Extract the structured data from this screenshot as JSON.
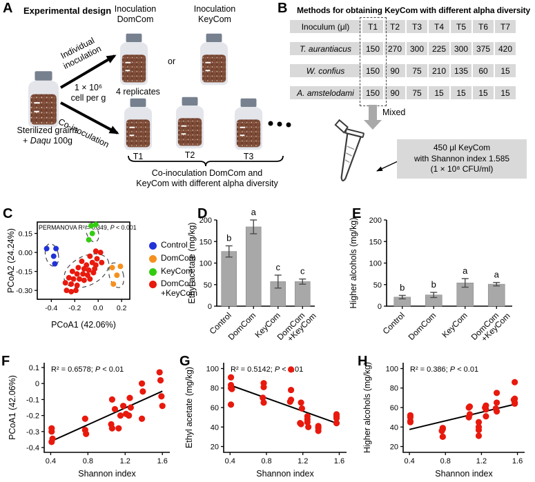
{
  "panel_a": {
    "label": "A",
    "title": "Experimental design",
    "inoculation_domcom": "Inoculation\nDomCom",
    "inoculation_keycom": "Inoculation\nKeyCom",
    "or_text": "or",
    "individual_label": "Individual\ninoculation",
    "co_label": "Co-inoculation",
    "cell_density": "1 × 10⁶\ncell per g",
    "replicates": "4 replicates",
    "sterilized_line1": "Sterilized grains",
    "sterilized_prefix": "+ ",
    "sterilized_italic": "Daqu",
    "sterilized_suffix": " 100g",
    "t1": "T1",
    "t2": "T2",
    "t3": "T3",
    "brace_caption": "Co-inoculation DomCom and\nKeyCom with different alpha diversity"
  },
  "panel_b": {
    "label": "B",
    "title": "Methods for obtaining KeyCom with different alpha diversity",
    "table": {
      "header": [
        "Inoculum (μl)",
        "T1",
        "T2",
        "T3",
        "T4",
        "T5",
        "T6",
        "T7"
      ],
      "rows": [
        {
          "species": "T. aurantiacus",
          "values": [
            "150",
            "270",
            "300",
            "225",
            "300",
            "375",
            "420"
          ]
        },
        {
          "species": "W. confius",
          "values": [
            "150",
            "90",
            "75",
            "210",
            "135",
            "60",
            "15"
          ]
        },
        {
          "species": "A. amstelodami",
          "values": [
            "150",
            "90",
            "75",
            "15",
            "15",
            "15",
            "15"
          ]
        }
      ]
    },
    "mixed_label": "Mixed",
    "callout": "450 μl KeyCom\nwith Shannon index 1.585\n(1 × 10⁸ CFU/ml)"
  },
  "panel_labels": {
    "c": "C",
    "d": "D",
    "e": "E",
    "f": "F",
    "g": "G",
    "h": "H"
  },
  "colors": {
    "control_blue": "#2132d8",
    "domcom_orange": "#f5901e",
    "keycom_green": "#33cc11",
    "point_red": "#e8190d",
    "bar_gray": "#a8a8a8",
    "cell_gray": "#d9d9d9",
    "arrow_gray": "#a9a9a9",
    "grain_brown": "#7c4a36"
  },
  "chart_data": [
    {
      "id": "C",
      "type": "scatter",
      "annotation": {
        "pre": "PERMANOVA R² = 0.349, ",
        "italic": "P",
        "post": " < 0.001"
      },
      "xlabel": "PCoA1 (42.06%)",
      "ylabel": "PCoA2 (24.24%)",
      "xlim": [
        -0.52,
        0.27
      ],
      "ylim": [
        -0.37,
        0.24
      ],
      "xticks": [
        -0.4,
        -0.2,
        0.0,
        0.2
      ],
      "xtick_labels": [
        "-0.4",
        "-0.2",
        "0.0",
        "0.2"
      ],
      "yticks": [
        0.15,
        0.0,
        -0.15,
        -0.3
      ],
      "ytick_labels": [
        "0.15",
        "0.00",
        "-0.15",
        "-0.30"
      ],
      "legend_position": "right",
      "series": [
        {
          "name": "Control",
          "color": "#2132d8",
          "points": [
            [
              -0.44,
              0.03
            ],
            [
              -0.36,
              0.03
            ],
            [
              -0.38,
              -0.03
            ],
            [
              -0.37,
              -0.09
            ]
          ],
          "ellipse": {
            "cx": -0.395,
            "cy": -0.02,
            "rx": 0.055,
            "ry": 0.09,
            "rot": -12
          }
        },
        {
          "name": "DomCom",
          "color": "#f5901e",
          "points": [
            [
              0.12,
              -0.12
            ],
            [
              0.19,
              -0.11
            ],
            [
              0.16,
              -0.18
            ],
            [
              0.13,
              -0.25
            ]
          ],
          "ellipse": {
            "cx": 0.155,
            "cy": -0.18,
            "rx": 0.06,
            "ry": 0.1,
            "rot": -15
          }
        },
        {
          "name": "KeyCom",
          "color": "#33cc11",
          "points": [
            [
              -0.06,
              0.21
            ],
            [
              -0.02,
              0.22
            ],
            [
              -0.05,
              0.15
            ],
            [
              -0.08,
              0.1
            ]
          ],
          "ellipse": {
            "cx": -0.05,
            "cy": 0.16,
            "rx": 0.05,
            "ry": 0.08,
            "rot": -20
          }
        },
        {
          "name": "DomCom\n+KeyCom",
          "color": "#e8190d",
          "points": [
            [
              -0.02,
              0.01
            ],
            [
              0.02,
              0.0
            ],
            [
              -0.07,
              -0.03
            ],
            [
              -0.01,
              -0.05
            ],
            [
              -0.14,
              -0.07
            ],
            [
              -0.1,
              -0.1
            ],
            [
              -0.05,
              -0.08
            ],
            [
              -0.02,
              -0.1
            ],
            [
              0.03,
              -0.08
            ],
            [
              -0.17,
              -0.12
            ],
            [
              -0.12,
              -0.13
            ],
            [
              -0.08,
              -0.14
            ],
            [
              -0.03,
              -0.13
            ],
            [
              -0.22,
              -0.15
            ],
            [
              -0.18,
              -0.17
            ],
            [
              -0.13,
              -0.17
            ],
            [
              -0.09,
              -0.18
            ],
            [
              -0.04,
              -0.16
            ],
            [
              -0.25,
              -0.2
            ],
            [
              -0.21,
              -0.21
            ],
            [
              -0.16,
              -0.21
            ],
            [
              -0.12,
              -0.22
            ],
            [
              -0.07,
              -0.21
            ],
            [
              -0.28,
              -0.24
            ],
            [
              -0.23,
              -0.25
            ],
            [
              -0.18,
              -0.26
            ],
            [
              -0.27,
              -0.3
            ],
            [
              -0.23,
              -0.31
            ],
            [
              -0.19,
              -0.3
            ]
          ],
          "ellipse": {
            "cx": -0.1,
            "cy": -0.145,
            "rx": 0.205,
            "ry": 0.115,
            "rot": -27
          }
        }
      ]
    },
    {
      "id": "D",
      "type": "bar",
      "ylabel": "Ethyl acetate (mg/kg)",
      "categories": [
        "Control",
        "DomCom",
        "KeyCom",
        "DomCom\n+KeyCom"
      ],
      "values": [
        127,
        184,
        57,
        57
      ],
      "errors": [
        13,
        16,
        15,
        6
      ],
      "letters": [
        "b",
        "a",
        "c",
        "c"
      ],
      "ylim": [
        0,
        200
      ],
      "yticks": [
        0,
        50,
        100,
        150,
        200
      ],
      "bar_color": "#a8a8a8"
    },
    {
      "id": "E",
      "type": "bar",
      "ylabel": "Higher alcohols (mg/kg)",
      "categories": [
        "Control",
        "DomCom",
        "KeyCom",
        "DomCom\n+KeyCom"
      ],
      "values": [
        21,
        26,
        54,
        51
      ],
      "errors": [
        4,
        6,
        10,
        4
      ],
      "letters": [
        "b",
        "b",
        "a",
        "a"
      ],
      "ylim": [
        0,
        200
      ],
      "yticks": [
        0,
        50,
        100,
        150,
        200
      ],
      "bar_color": "#a8a8a8"
    },
    {
      "id": "F",
      "type": "scatter",
      "annotation": {
        "pre": "R² = 0.6578; ",
        "italic": "P",
        "post": " < 0.01"
      },
      "xlabel": "Shannon index",
      "ylabel": "PCoA1 (42.06%)",
      "xlim": [
        0.33,
        1.68
      ],
      "ylim": [
        -0.43,
        0.13
      ],
      "xticks": [
        0.4,
        0.8,
        1.2,
        1.6
      ],
      "xtick_labels": [
        "0.4",
        "0.8",
        "1.2",
        "1.6"
      ],
      "yticks": [
        0.1,
        0.0,
        -0.1,
        -0.2,
        -0.3,
        -0.4
      ],
      "ytick_labels": [
        "0.1",
        "0",
        "-0.1",
        "-0.2",
        "-0.3",
        "-0.4"
      ],
      "point_color": "#e8190d",
      "points": [
        [
          0.41,
          -0.28
        ],
        [
          0.41,
          -0.3
        ],
        [
          0.42,
          -0.345
        ],
        [
          0.41,
          -0.365
        ],
        [
          0.77,
          -0.22
        ],
        [
          0.77,
          -0.29
        ],
        [
          0.78,
          -0.315
        ],
        [
          1.06,
          -0.1
        ],
        [
          1.09,
          -0.16
        ],
        [
          1.05,
          -0.255
        ],
        [
          1.06,
          -0.28
        ],
        [
          1.15,
          -0.2
        ],
        [
          1.18,
          -0.14
        ],
        [
          1.13,
          -0.28
        ],
        [
          1.25,
          -0.09
        ],
        [
          1.26,
          -0.15
        ],
        [
          1.21,
          -0.19
        ],
        [
          1.24,
          -0.2
        ],
        [
          1.38,
          0.0
        ],
        [
          1.39,
          -0.05
        ],
        [
          1.38,
          -0.22
        ],
        [
          1.57,
          0.07
        ],
        [
          1.58,
          0.02
        ],
        [
          1.59,
          -0.08
        ],
        [
          1.6,
          -0.14
        ]
      ],
      "trend": [
        [
          0.4,
          -0.362
        ],
        [
          1.6,
          -0.048
        ]
      ]
    },
    {
      "id": "G",
      "type": "scatter",
      "annotation": {
        "pre": "R² = 0.5142; ",
        "italic": "P",
        "post": " < 0.01"
      },
      "xlabel": "Shannon index",
      "ylabel": "Ethyl acetate (mg/kg)",
      "xlim": [
        0.33,
        1.68
      ],
      "ylim": [
        14,
        106
      ],
      "xticks": [
        0.4,
        0.8,
        1.2,
        1.6
      ],
      "xtick_labels": [
        "0.4",
        "0.8",
        "1.2",
        "1.6"
      ],
      "yticks": [
        20,
        40,
        60,
        80,
        100
      ],
      "ytick_labels": [
        "20",
        "40",
        "60",
        "80",
        "100"
      ],
      "point_color": "#e8190d",
      "points": [
        [
          0.41,
          91
        ],
        [
          0.41,
          83
        ],
        [
          0.41,
          80
        ],
        [
          0.42,
          79
        ],
        [
          0.41,
          63
        ],
        [
          0.77,
          85
        ],
        [
          0.77,
          81
        ],
        [
          0.76,
          70
        ],
        [
          0.77,
          65
        ],
        [
          1.07,
          99
        ],
        [
          1.07,
          78
        ],
        [
          1.07,
          68
        ],
        [
          1.06,
          66
        ],
        [
          1.18,
          65
        ],
        [
          1.19,
          59
        ],
        [
          1.17,
          44
        ],
        [
          1.18,
          43
        ],
        [
          1.25,
          51
        ],
        [
          1.25,
          48
        ],
        [
          1.25,
          45
        ],
        [
          1.26,
          40
        ],
        [
          1.37,
          41
        ],
        [
          1.37,
          39
        ],
        [
          1.37,
          36
        ],
        [
          1.57,
          53
        ],
        [
          1.57,
          51
        ],
        [
          1.57,
          49
        ],
        [
          1.57,
          44
        ]
      ],
      "trend": [
        [
          0.4,
          83
        ],
        [
          1.6,
          43
        ]
      ]
    },
    {
      "id": "H",
      "type": "scatter",
      "annotation": {
        "pre": "R² = 0.386; ",
        "italic": "P",
        "post": " < 0.01"
      },
      "xlabel": "Shannon index",
      "ylabel": "Higher alcohols (mg/kg)",
      "xlim": [
        0.33,
        1.68
      ],
      "ylim": [
        14,
        106
      ],
      "xticks": [
        0.4,
        0.8,
        1.2,
        1.6
      ],
      "xtick_labels": [
        "0.4",
        "0.8",
        "1.2",
        "1.6"
      ],
      "yticks": [
        20,
        40,
        60,
        80,
        100
      ],
      "ytick_labels": [
        "20",
        "40",
        "60",
        "80",
        "100"
      ],
      "point_color": "#e8190d",
      "points": [
        [
          0.41,
          52
        ],
        [
          0.41,
          50
        ],
        [
          0.41,
          46
        ],
        [
          0.41,
          45
        ],
        [
          0.77,
          39
        ],
        [
          0.77,
          38
        ],
        [
          0.76,
          36
        ],
        [
          0.77,
          30
        ],
        [
          1.07,
          61
        ],
        [
          1.06,
          60
        ],
        [
          1.07,
          53
        ],
        [
          1.06,
          50
        ],
        [
          1.17,
          45
        ],
        [
          1.17,
          40
        ],
        [
          1.17,
          37
        ],
        [
          1.17,
          31
        ],
        [
          1.25,
          62
        ],
        [
          1.24,
          60
        ],
        [
          1.25,
          58
        ],
        [
          1.25,
          51
        ],
        [
          1.37,
          75
        ],
        [
          1.37,
          65
        ],
        [
          1.36,
          59
        ],
        [
          1.37,
          56
        ],
        [
          1.57,
          86
        ],
        [
          1.57,
          69
        ],
        [
          1.56,
          68
        ],
        [
          1.57,
          65
        ],
        [
          1.57,
          64
        ]
      ],
      "trend": [
        [
          0.4,
          37.5
        ],
        [
          1.6,
          64
        ]
      ]
    }
  ]
}
